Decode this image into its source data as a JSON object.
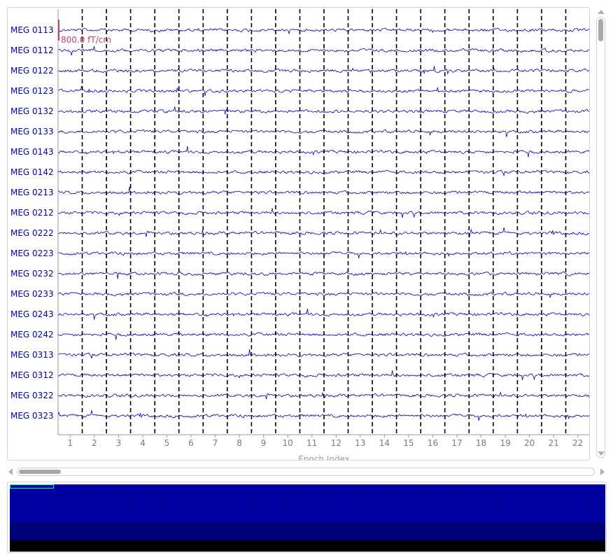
{
  "chart_data": {
    "type": "line",
    "channels": [
      "MEG 0113",
      "MEG 0112",
      "MEG 0122",
      "MEG 0123",
      "MEG 0132",
      "MEG 0133",
      "MEG 0143",
      "MEG 0142",
      "MEG 0213",
      "MEG 0212",
      "MEG 0222",
      "MEG 0223",
      "MEG 0232",
      "MEG 0233",
      "MEG 0243",
      "MEG 0242",
      "MEG 0313",
      "MEG 0312",
      "MEG 0322",
      "MEG 0323"
    ],
    "x_ticks": [
      "1",
      "2",
      "3",
      "4",
      "5",
      "6",
      "7",
      "8",
      "9",
      "10",
      "11",
      "12",
      "13",
      "14",
      "15",
      "16",
      "17",
      "18",
      "19",
      "20",
      "21",
      "22"
    ],
    "xlabel": "Epoch Index",
    "scale_label": "800.0 fT/cm",
    "trace_color": "#0000aa",
    "label_color": "#0000aa",
    "scale_color": "#c0407a",
    "epoch_separator_color": "#000000",
    "grid": false
  },
  "overview": {
    "fill_color": "#0000aa",
    "bottom_band_color": "#000000",
    "view_box_color": "#00ff88"
  }
}
